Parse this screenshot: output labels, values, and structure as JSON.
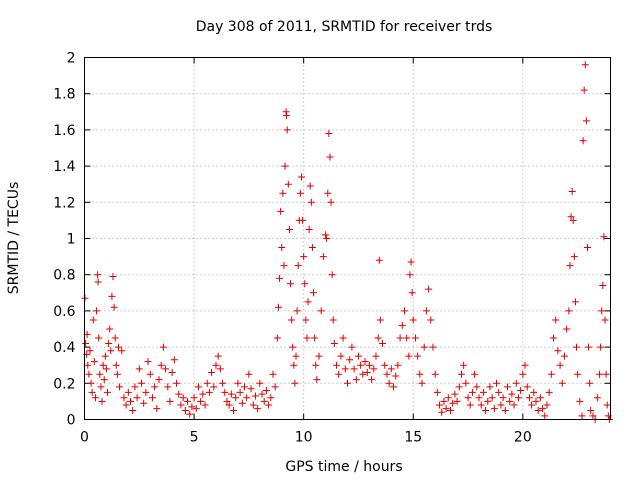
{
  "chart_data": {
    "type": "scatter",
    "title": "Day 308 of 2011, SRMTID for receiver trds",
    "xlabel": "GPS time / hours",
    "ylabel": "SRMTID / TECUs",
    "xlim": [
      0,
      24
    ],
    "ylim": [
      0,
      2
    ],
    "xticks": [
      "0",
      "5",
      "10",
      "15",
      "20"
    ],
    "yticks": [
      "0",
      "0.2",
      "0.4",
      "0.6",
      "0.8",
      "1",
      "1.2",
      "1.4",
      "1.6",
      "1.8",
      "2"
    ],
    "grid": true,
    "marker": "plus",
    "color": "#e00000",
    "series": [
      {
        "points": [
          [
            0.02,
            0.67
          ],
          [
            0.05,
            0.42
          ],
          [
            0.1,
            0.36
          ],
          [
            0.12,
            0.47
          ],
          [
            0.15,
            0.3
          ],
          [
            0.2,
            0.25
          ],
          [
            0.25,
            0.38
          ],
          [
            0.3,
            0.2
          ],
          [
            0.35,
            0.15
          ],
          [
            0.4,
            0.55
          ],
          [
            0.45,
            0.32
          ],
          [
            0.5,
            0.12
          ],
          [
            0.55,
            0.6
          ],
          [
            0.6,
            0.8
          ],
          [
            0.62,
            0.76
          ],
          [
            0.65,
            0.45
          ],
          [
            0.7,
            0.25
          ],
          [
            0.75,
            0.18
          ],
          [
            0.8,
            0.1
          ],
          [
            0.85,
            0.3
          ],
          [
            0.9,
            0.22
          ],
          [
            0.95,
            0.35
          ],
          [
            1.0,
            0.28
          ],
          [
            1.05,
            0.15
          ],
          [
            1.1,
            0.42
          ],
          [
            1.15,
            0.5
          ],
          [
            1.2,
            0.38
          ],
          [
            1.25,
            0.68
          ],
          [
            1.3,
            0.79
          ],
          [
            1.35,
            0.62
          ],
          [
            1.4,
            0.45
          ],
          [
            1.45,
            0.3
          ],
          [
            1.5,
            0.25
          ],
          [
            1.55,
            0.4
          ],
          [
            1.6,
            0.18
          ],
          [
            1.7,
            0.38
          ],
          [
            1.8,
            0.12
          ],
          [
            1.9,
            0.08
          ],
          [
            2.0,
            0.15
          ],
          [
            2.1,
            0.1
          ],
          [
            2.2,
            0.05
          ],
          [
            2.3,
            0.18
          ],
          [
            2.4,
            0.12
          ],
          [
            2.5,
            0.28
          ],
          [
            2.6,
            0.2
          ],
          [
            2.7,
            0.09
          ],
          [
            2.8,
            0.15
          ],
          [
            2.9,
            0.32
          ],
          [
            3.0,
            0.25
          ],
          [
            3.1,
            0.12
          ],
          [
            3.2,
            0.18
          ],
          [
            3.3,
            0.06
          ],
          [
            3.4,
            0.22
          ],
          [
            3.5,
            0.3
          ],
          [
            3.6,
            0.4
          ],
          [
            3.7,
            0.28
          ],
          [
            3.8,
            0.18
          ],
          [
            3.9,
            0.1
          ],
          [
            4.0,
            0.26
          ],
          [
            4.1,
            0.33
          ],
          [
            4.2,
            0.2
          ],
          [
            4.3,
            0.14
          ],
          [
            4.4,
            0.08
          ],
          [
            4.5,
            0.12
          ],
          [
            4.6,
            0.05
          ],
          [
            4.7,
            0.1
          ],
          [
            4.8,
            0.03
          ],
          [
            4.9,
            0.07
          ],
          [
            5.0,
            0.12
          ],
          [
            5.1,
            0.06
          ],
          [
            5.2,
            0.18
          ],
          [
            5.3,
            0.1
          ],
          [
            5.4,
            0.14
          ],
          [
            5.5,
            0.08
          ],
          [
            5.6,
            0.2
          ],
          [
            5.7,
            0.15
          ],
          [
            5.8,
            0.26
          ],
          [
            5.9,
            0.18
          ],
          [
            6.0,
            0.3
          ],
          [
            6.1,
            0.35
          ],
          [
            6.2,
            0.28
          ],
          [
            6.3,
            0.2
          ],
          [
            6.4,
            0.15
          ],
          [
            6.5,
            0.1
          ],
          [
            6.6,
            0.08
          ],
          [
            6.7,
            0.14
          ],
          [
            6.8,
            0.05
          ],
          [
            6.9,
            0.12
          ],
          [
            7.0,
            0.2
          ],
          [
            7.1,
            0.15
          ],
          [
            7.2,
            0.09
          ],
          [
            7.3,
            0.18
          ],
          [
            7.4,
            0.12
          ],
          [
            7.5,
            0.25
          ],
          [
            7.6,
            0.17
          ],
          [
            7.7,
            0.08
          ],
          [
            7.8,
            0.13
          ],
          [
            7.9,
            0.06
          ],
          [
            8.0,
            0.2
          ],
          [
            8.1,
            0.14
          ],
          [
            8.2,
            0.1
          ],
          [
            8.3,
            0.16
          ],
          [
            8.4,
            0.08
          ],
          [
            8.5,
            0.12
          ],
          [
            8.6,
            0.25
          ],
          [
            8.7,
            0.18
          ],
          [
            8.8,
            0.45
          ],
          [
            8.85,
            0.62
          ],
          [
            8.9,
            0.78
          ],
          [
            8.95,
            1.15
          ],
          [
            9.0,
            0.95
          ],
          [
            9.05,
            1.25
          ],
          [
            9.1,
            0.85
          ],
          [
            9.15,
            1.4
          ],
          [
            9.2,
            1.7
          ],
          [
            9.22,
            1.68
          ],
          [
            9.25,
            1.6
          ],
          [
            9.3,
            1.3
          ],
          [
            9.35,
            1.05
          ],
          [
            9.4,
            0.75
          ],
          [
            9.45,
            0.55
          ],
          [
            9.5,
            0.4
          ],
          [
            9.55,
            0.3
          ],
          [
            9.6,
            0.2
          ],
          [
            9.65,
            0.35
          ],
          [
            9.7,
            0.6
          ],
          [
            9.75,
            0.85
          ],
          [
            9.8,
            1.1
          ],
          [
            9.85,
            1.25
          ],
          [
            9.9,
            1.34
          ],
          [
            9.95,
            1.1
          ],
          [
            10.0,
            0.9
          ],
          [
            10.05,
            0.75
          ],
          [
            10.1,
            0.55
          ],
          [
            10.15,
            0.45
          ],
          [
            10.2,
            0.65
          ],
          [
            10.25,
            1.05
          ],
          [
            10.3,
            1.29
          ],
          [
            10.35,
            1.2
          ],
          [
            10.4,
            0.95
          ],
          [
            10.45,
            0.7
          ],
          [
            10.5,
            0.45
          ],
          [
            10.55,
            0.3
          ],
          [
            10.6,
            0.22
          ],
          [
            10.7,
            0.35
          ],
          [
            10.8,
            0.6
          ],
          [
            10.9,
            0.9
          ],
          [
            11.0,
            1.02
          ],
          [
            11.05,
            1.0
          ],
          [
            11.1,
            1.25
          ],
          [
            11.15,
            1.58
          ],
          [
            11.2,
            1.45
          ],
          [
            11.25,
            1.2
          ],
          [
            11.3,
            0.8
          ],
          [
            11.35,
            0.55
          ],
          [
            11.4,
            0.42
          ],
          [
            11.5,
            0.3
          ],
          [
            11.6,
            0.25
          ],
          [
            11.7,
            0.35
          ],
          [
            11.8,
            0.45
          ],
          [
            11.9,
            0.28
          ],
          [
            12.0,
            0.2
          ],
          [
            12.1,
            0.33
          ],
          [
            12.2,
            0.4
          ],
          [
            12.3,
            0.28
          ],
          [
            12.4,
            0.22
          ],
          [
            12.5,
            0.35
          ],
          [
            12.6,
            0.3
          ],
          [
            12.7,
            0.25
          ],
          [
            12.8,
            0.32
          ],
          [
            12.9,
            0.26
          ],
          [
            13.0,
            0.3
          ],
          [
            13.1,
            0.22
          ],
          [
            13.2,
            0.28
          ],
          [
            13.3,
            0.35
          ],
          [
            13.4,
            0.45
          ],
          [
            13.45,
            0.88
          ],
          [
            13.5,
            0.55
          ],
          [
            13.6,
            0.42
          ],
          [
            13.7,
            0.3
          ],
          [
            13.8,
            0.25
          ],
          [
            13.9,
            0.2
          ],
          [
            14.0,
            0.28
          ],
          [
            14.1,
            0.18
          ],
          [
            14.2,
            0.24
          ],
          [
            14.3,
            0.3
          ],
          [
            14.4,
            0.45
          ],
          [
            14.5,
            0.52
          ],
          [
            14.6,
            0.6
          ],
          [
            14.7,
            0.45
          ],
          [
            14.8,
            0.35
          ],
          [
            14.85,
            0.8
          ],
          [
            14.9,
            0.87
          ],
          [
            14.95,
            0.7
          ],
          [
            15.0,
            0.55
          ],
          [
            15.1,
            0.45
          ],
          [
            15.2,
            0.35
          ],
          [
            15.3,
            0.25
          ],
          [
            15.4,
            0.2
          ],
          [
            15.5,
            0.4
          ],
          [
            15.6,
            0.6
          ],
          [
            15.7,
            0.72
          ],
          [
            15.8,
            0.55
          ],
          [
            15.9,
            0.4
          ],
          [
            16.0,
            0.25
          ],
          [
            16.1,
            0.15
          ],
          [
            16.2,
            0.08
          ],
          [
            16.3,
            0.04
          ],
          [
            16.4,
            0.1
          ],
          [
            16.5,
            0.06
          ],
          [
            16.6,
            0.12
          ],
          [
            16.7,
            0.05
          ],
          [
            16.8,
            0.09
          ],
          [
            16.9,
            0.14
          ],
          [
            17.0,
            0.1
          ],
          [
            17.1,
            0.18
          ],
          [
            17.2,
            0.25
          ],
          [
            17.3,
            0.3
          ],
          [
            17.4,
            0.2
          ],
          [
            17.5,
            0.12
          ],
          [
            17.6,
            0.08
          ],
          [
            17.7,
            0.15
          ],
          [
            17.8,
            0.25
          ],
          [
            17.9,
            0.18
          ],
          [
            18.0,
            0.12
          ],
          [
            18.1,
            0.08
          ],
          [
            18.2,
            0.15
          ],
          [
            18.3,
            0.05
          ],
          [
            18.4,
            0.1
          ],
          [
            18.5,
            0.18
          ],
          [
            18.6,
            0.12
          ],
          [
            18.7,
            0.06
          ],
          [
            18.8,
            0.2
          ],
          [
            18.9,
            0.15
          ],
          [
            19.0,
            0.08
          ],
          [
            19.1,
            0.12
          ],
          [
            19.2,
            0.05
          ],
          [
            19.3,
            0.18
          ],
          [
            19.4,
            0.1
          ],
          [
            19.5,
            0.14
          ],
          [
            19.6,
            0.08
          ],
          [
            19.7,
            0.2
          ],
          [
            19.8,
            0.12
          ],
          [
            19.9,
            0.16
          ],
          [
            20.0,
            0.25
          ],
          [
            20.1,
            0.3
          ],
          [
            20.2,
            0.18
          ],
          [
            20.3,
            0.12
          ],
          [
            20.4,
            0.08
          ],
          [
            20.5,
            0.15
          ],
          [
            20.6,
            0.1
          ],
          [
            20.7,
            0.05
          ],
          [
            20.8,
            0.12
          ],
          [
            20.9,
            0.06
          ],
          [
            21.0,
            0.02
          ],
          [
            21.1,
            0.08
          ],
          [
            21.2,
            0.15
          ],
          [
            21.3,
            0.25
          ],
          [
            21.4,
            0.45
          ],
          [
            21.5,
            0.55
          ],
          [
            21.6,
            0.38
          ],
          [
            21.7,
            0.3
          ],
          [
            21.8,
            0.2
          ],
          [
            21.9,
            0.35
          ],
          [
            22.0,
            0.5
          ],
          [
            22.1,
            0.6
          ],
          [
            22.15,
            0.85
          ],
          [
            22.2,
            1.12
          ],
          [
            22.25,
            1.26
          ],
          [
            22.3,
            1.1
          ],
          [
            22.35,
            0.9
          ],
          [
            22.4,
            0.65
          ],
          [
            22.45,
            0.4
          ],
          [
            22.5,
            0.25
          ],
          [
            22.6,
            0.1
          ],
          [
            22.7,
            0.02
          ],
          [
            22.75,
            1.54
          ],
          [
            22.8,
            1.82
          ],
          [
            22.85,
            1.96
          ],
          [
            22.9,
            1.65
          ],
          [
            22.95,
            0.95
          ],
          [
            23.0,
            0.4
          ],
          [
            23.05,
            0.2
          ],
          [
            23.1,
            0.05
          ],
          [
            23.2,
            0.02
          ],
          [
            23.3,
            0.0
          ],
          [
            23.4,
            0.12
          ],
          [
            23.5,
            0.25
          ],
          [
            23.55,
            0.4
          ],
          [
            23.6,
            0.6
          ],
          [
            23.65,
            0.74
          ],
          [
            23.7,
            1.01
          ],
          [
            23.75,
            0.55
          ],
          [
            23.8,
            0.25
          ],
          [
            23.85,
            0.08
          ],
          [
            23.9,
            0.02
          ],
          [
            23.95,
            0.0
          ]
        ]
      }
    ]
  }
}
